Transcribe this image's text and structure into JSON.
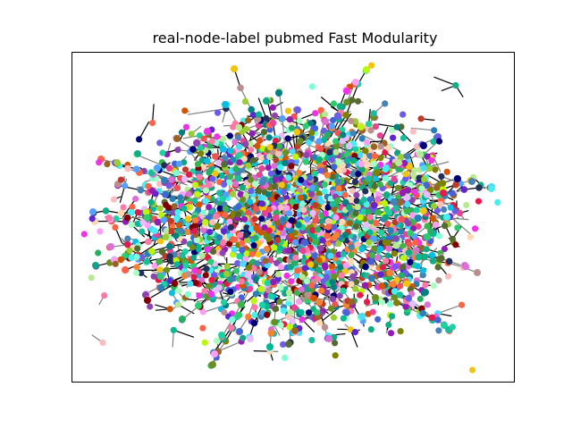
{
  "figure": {
    "title": "real-node-label pubmed Fast Modularity",
    "axes_visible": false,
    "colors": {
      "edge_gray": "#808080",
      "edge_black": "#000000",
      "background": "#ffffff",
      "frame": "#000000"
    },
    "community_palette": [
      "#e6194b",
      "#3cb44b",
      "#2ecc71",
      "#4363d8",
      "#f58231",
      "#911eb4",
      "#46f0f0",
      "#f032e6",
      "#bcf60c",
      "#fabebe",
      "#008080",
      "#e6beff",
      "#9a6324",
      "#800000",
      "#aaffc3",
      "#808000",
      "#ffd8b1",
      "#000075",
      "#1abc9c",
      "#c0392b",
      "#8e44ad",
      "#2980b9",
      "#27ae60",
      "#d35400",
      "#f1c40f",
      "#16a085",
      "#e84393",
      "#6c5ce7",
      "#00b894",
      "#fd79a8",
      "#b8e994",
      "#5f27cd",
      "#ff9ff3",
      "#54a0ff",
      "#48dbfb",
      "#1dd1a1",
      "#10ac84",
      "#ee5253",
      "#0abde3",
      "#222f5b",
      "#6b8e23",
      "#9acd32",
      "#7fffd4",
      "#da70d6",
      "#bc8f8f",
      "#4682b4",
      "#556b2f",
      "#ff6347"
    ]
  }
}
